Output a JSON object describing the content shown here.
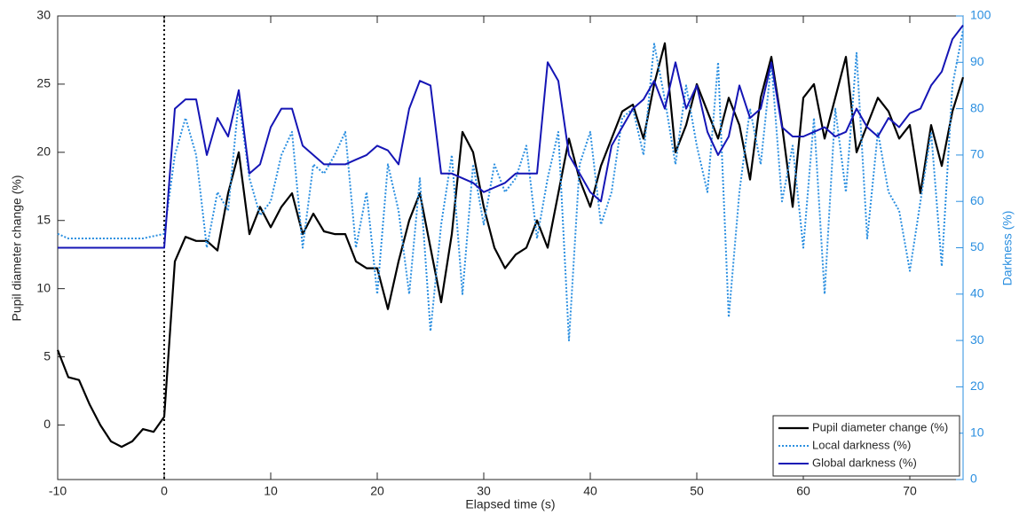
{
  "chart_data": {
    "type": "line",
    "xlabel": "Elapsed time (s)",
    "ylabel": "Pupil diameter change (%)",
    "y2label": "Darkness (%)",
    "y2color": "#2b8fe0",
    "xlim": [
      -10,
      75
    ],
    "xticks": [
      -10,
      0,
      10,
      20,
      30,
      40,
      50,
      60,
      70
    ],
    "ylim": [
      -4,
      30
    ],
    "yticks": [
      0,
      5,
      10,
      15,
      20,
      25,
      30
    ],
    "y2lim": [
      0,
      100
    ],
    "y2ticks": [
      0,
      10,
      20,
      30,
      40,
      50,
      60,
      70,
      80,
      90,
      100
    ],
    "legend": "lower right",
    "reference_line": {
      "x": 0,
      "style": "dotted",
      "color": "#000000"
    },
    "x": [
      -10,
      -9,
      -8,
      -7,
      -6,
      -5,
      -4,
      -3,
      -2,
      -1,
      0,
      1,
      2,
      3,
      4,
      5,
      6,
      7,
      8,
      9,
      10,
      11,
      12,
      13,
      14,
      15,
      16,
      17,
      18,
      19,
      20,
      21,
      22,
      23,
      24,
      25,
      26,
      27,
      28,
      29,
      30,
      31,
      32,
      33,
      34,
      35,
      36,
      37,
      38,
      39,
      40,
      41,
      42,
      43,
      44,
      45,
      46,
      47,
      48,
      49,
      50,
      51,
      52,
      53,
      54,
      55,
      56,
      57,
      58,
      59,
      60,
      61,
      62,
      63,
      64,
      65,
      66,
      67,
      68,
      69,
      70,
      71,
      72,
      73,
      74,
      75
    ],
    "series": [
      {
        "name": "Pupil diameter change (%)",
        "color": "#000000",
        "style": "solid",
        "width": 2.2,
        "axis": "y",
        "values": [
          5.5,
          3.5,
          3.3,
          1.5,
          0,
          -1.2,
          -1.6,
          -1.2,
          -0.3,
          -0.5,
          0.6,
          12,
          13.8,
          13.5,
          13.5,
          12.8,
          17,
          20,
          14,
          16,
          14.5,
          16,
          17,
          14,
          15.5,
          14.2,
          14,
          14,
          12,
          11.5,
          11.5,
          8.5,
          12,
          15,
          17,
          13,
          9,
          14,
          21.5,
          20,
          16,
          13,
          11.5,
          12.5,
          13,
          15,
          13,
          17,
          21,
          18,
          16,
          19,
          21,
          23,
          23.5,
          21,
          25,
          28,
          20,
          22,
          25,
          23,
          21,
          24,
          22,
          18,
          24,
          27,
          22,
          16,
          24,
          25,
          21,
          24,
          27,
          20,
          22,
          24,
          23,
          21,
          22,
          17,
          22,
          19,
          23,
          25.5
        ]
      },
      {
        "name": "Local darkness (%)",
        "color": "#2b8fe0",
        "style": "dotted",
        "width": 2,
        "axis": "y2",
        "values": [
          53,
          52,
          52,
          52,
          52,
          52,
          52,
          52,
          52,
          52.5,
          53,
          70,
          78,
          70,
          50,
          62,
          58,
          82,
          65,
          57,
          60,
          70,
          75,
          50,
          68,
          66,
          70,
          75,
          50,
          62,
          40,
          68,
          58,
          40,
          65,
          32,
          55,
          70,
          40,
          68,
          55,
          68,
          62,
          65,
          72,
          52,
          65,
          75,
          30,
          68,
          75,
          55,
          62,
          78,
          80,
          70,
          94,
          82,
          68,
          85,
          72,
          62,
          90,
          35,
          62,
          80,
          68,
          90,
          60,
          72,
          50,
          78,
          40,
          80,
          62,
          92,
          52,
          75,
          62,
          58,
          45,
          60,
          75,
          46,
          85,
          97
        ]
      },
      {
        "name": "Global darkness (%)",
        "color": "#1515b5",
        "style": "solid",
        "width": 2,
        "axis": "y2",
        "values": [
          50,
          50,
          50,
          50,
          50,
          50,
          50,
          50,
          50,
          50,
          50,
          80,
          82,
          82,
          70,
          78,
          74,
          84,
          66,
          68,
          76,
          80,
          80,
          72,
          70,
          68,
          68,
          68,
          69,
          70,
          72,
          71,
          68,
          80,
          86,
          85,
          66,
          66,
          65,
          64,
          62,
          63,
          64,
          66,
          66,
          66,
          90,
          86,
          70,
          66,
          62,
          60,
          72,
          76,
          80,
          82,
          86,
          80,
          90,
          80,
          85,
          75,
          70,
          74,
          85,
          78,
          80,
          90,
          76,
          74,
          74,
          75,
          76,
          74,
          75,
          80,
          76,
          74,
          78,
          76,
          79,
          80,
          85,
          88,
          95,
          98
        ]
      }
    ]
  }
}
